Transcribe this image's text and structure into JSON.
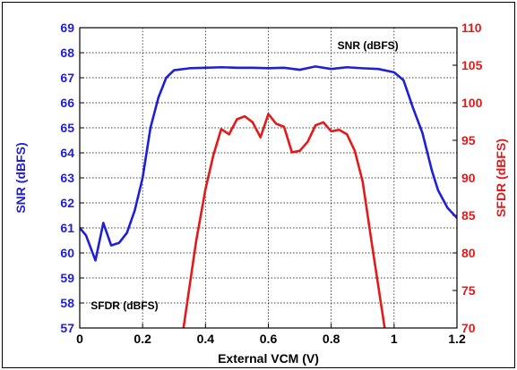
{
  "chart_data": {
    "type": "line",
    "xlabel": "External VCM (V)",
    "ylabel_left": "SNR (dBFS)",
    "ylabel_right": "SFDR (dBFS)",
    "xlim": [
      0,
      1.2
    ],
    "ylim_left": [
      57,
      69
    ],
    "ylim_right": [
      70,
      110
    ],
    "x_ticks": [
      "0",
      "0.2",
      "0.4",
      "0.6",
      "0.8",
      "1",
      "1.2"
    ],
    "y_left_ticks": [
      "57",
      "58",
      "59",
      "60",
      "61",
      "62",
      "63",
      "64",
      "65",
      "66",
      "67",
      "68",
      "69"
    ],
    "y_right_ticks": [
      "70",
      "75",
      "80",
      "85",
      "90",
      "95",
      "100",
      "105",
      "110"
    ],
    "grid": true,
    "colors": {
      "snr": "#1f1fd6",
      "sfdr": "#e31a1a"
    },
    "annotations": [
      {
        "text": "SNR (dBFS)"
      },
      {
        "text": "SFDR (dBFS)"
      }
    ],
    "series": [
      {
        "axis": "left",
        "color": "#1f1fd6",
        "x": [
          0,
          0.02,
          0.05,
          0.075,
          0.1,
          0.125,
          0.15,
          0.175,
          0.2,
          0.225,
          0.25,
          0.275,
          0.3,
          0.35,
          0.4,
          0.45,
          0.5,
          0.55,
          0.6,
          0.65,
          0.7,
          0.75,
          0.8,
          0.85,
          0.9,
          0.95,
          1.0,
          1.03,
          1.06,
          1.09,
          1.12,
          1.14,
          1.17,
          1.2
        ],
        "values": [
          61.0,
          60.7,
          59.7,
          61.2,
          60.3,
          60.4,
          60.8,
          61.7,
          63.0,
          65.0,
          66.2,
          67.0,
          67.3,
          67.38,
          67.4,
          67.42,
          67.4,
          67.4,
          67.38,
          67.4,
          67.32,
          67.45,
          67.35,
          67.42,
          67.38,
          67.35,
          67.22,
          66.9,
          65.8,
          64.8,
          63.3,
          62.5,
          61.8,
          61.4
        ]
      },
      {
        "axis": "right",
        "color": "#e31a1a",
        "x": [
          0.33,
          0.37,
          0.4,
          0.425,
          0.45,
          0.475,
          0.5,
          0.525,
          0.55,
          0.575,
          0.6,
          0.625,
          0.65,
          0.675,
          0.7,
          0.725,
          0.75,
          0.775,
          0.8,
          0.825,
          0.85,
          0.875,
          0.9,
          0.93,
          0.97
        ],
        "values": [
          70,
          81.5,
          88.5,
          93.0,
          96.5,
          95.8,
          97.8,
          98.2,
          97.4,
          95.4,
          98.5,
          97.2,
          96.8,
          93.4,
          93.6,
          94.8,
          97.0,
          97.4,
          96.2,
          96.4,
          95.8,
          93.6,
          89.5,
          81.0,
          70
        ]
      }
    ]
  }
}
